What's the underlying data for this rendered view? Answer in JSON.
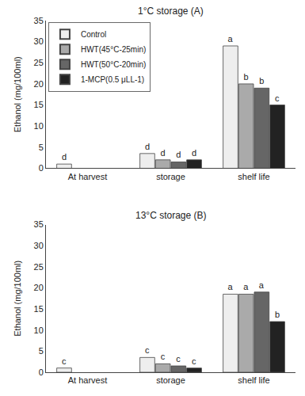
{
  "chart_data": [
    {
      "type": "bar",
      "title": "1°C storage (A)",
      "categories": [
        "At harvest",
        "storage",
        "shelf life"
      ],
      "series": [
        {
          "name": "Control",
          "color": "#eeeeee",
          "values": [
            1.0,
            3.5,
            29.0
          ],
          "annotations": [
            "d",
            "d",
            "a"
          ]
        },
        {
          "name": "HWT(45°C-25min)",
          "color": "#aaaaaa",
          "values": [
            null,
            2.0,
            20.0
          ],
          "annotations": [
            null,
            "d",
            "b"
          ]
        },
        {
          "name": "HWT(50°C-20min)",
          "color": "#666666",
          "values": [
            null,
            1.5,
            19.0
          ],
          "annotations": [
            null,
            "d",
            "b"
          ]
        },
        {
          "name": "1-MCP(0.5 μLL-1)",
          "color": "#222222",
          "values": [
            null,
            2.0,
            15.0
          ],
          "annotations": [
            null,
            "d",
            "c"
          ]
        }
      ],
      "ylabel": "Ethanol (mg/100ml)",
      "ylim": [
        0,
        35
      ],
      "yticks": [
        0,
        5,
        10,
        15,
        20,
        25,
        30,
        35
      ],
      "grid": false,
      "legend": "upper left"
    },
    {
      "type": "bar",
      "title": "13°C storage (B)",
      "categories": [
        "At harvest",
        "storage",
        "shelf life"
      ],
      "series": [
        {
          "name": "Control",
          "color": "#eeeeee",
          "values": [
            1.0,
            3.5,
            18.5
          ],
          "annotations": [
            "c",
            "c",
            "a"
          ]
        },
        {
          "name": "HWT(45°C-25min)",
          "color": "#aaaaaa",
          "values": [
            null,
            2.0,
            18.5
          ],
          "annotations": [
            null,
            "c",
            "a"
          ]
        },
        {
          "name": "HWT(50°C-20min)",
          "color": "#666666",
          "values": [
            null,
            1.5,
            19.0
          ],
          "annotations": [
            null,
            "c",
            "a"
          ]
        },
        {
          "name": "1-MCP(0.5 μLL-1)",
          "color": "#222222",
          "values": [
            null,
            1.0,
            12.0
          ],
          "annotations": [
            null,
            "c",
            "b"
          ]
        }
      ],
      "ylabel": "Ethanol (mg/100ml)",
      "ylim": [
        0,
        35
      ],
      "yticks": [
        0,
        5,
        10,
        15,
        20,
        25,
        30,
        35
      ],
      "grid": false
    }
  ]
}
